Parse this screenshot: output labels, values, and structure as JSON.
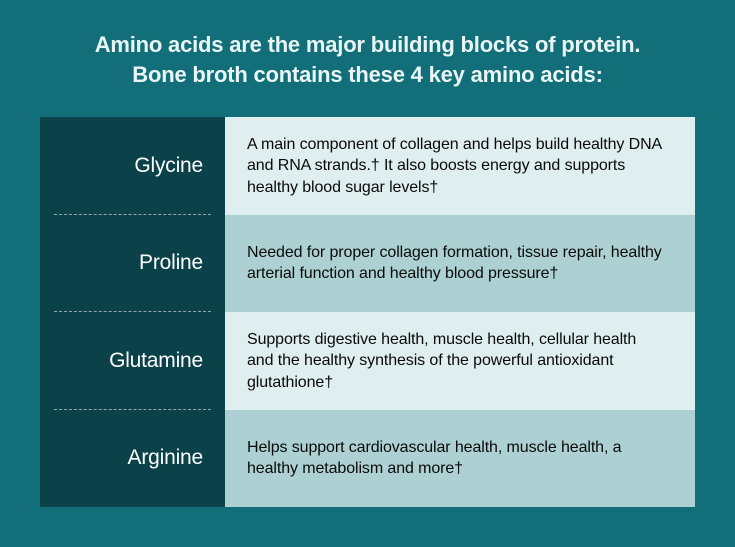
{
  "colors": {
    "bg": "#126f79",
    "heading": "#eaf5f5",
    "label_bg": "#0b4149",
    "label_text": "#ffffff",
    "divider": "rgba(255,255,255,0.55)",
    "desc_text": "#0a0a0a",
    "row_bg_light": "#dfeeee",
    "row_bg_dark": "#add1d3"
  },
  "heading_line1": "Amino acids are the major building blocks of protein.",
  "heading_line2": "Bone broth contains these 4 key amino acids:",
  "rows": [
    {
      "name": "Glycine",
      "desc": "A main component of collagen and helps build healthy DNA and RNA strands.† It also boosts energy and supports healthy blood sugar levels†",
      "bg": "#dfeeee"
    },
    {
      "name": "Proline",
      "desc": "Needed for proper collagen formation, tissue repair, healthy arterial function and healthy blood pressure†",
      "bg": "#add1d3"
    },
    {
      "name": "Glutamine",
      "desc": "Supports digestive health, muscle health, cellular health and the healthy synthesis of the powerful antioxidant glutathione†",
      "bg": "#dfeeee"
    },
    {
      "name": "Arginine",
      "desc": "Helps support cardiovascular health, muscle health, a healthy metabolism and more†",
      "bg": "#add1d3"
    }
  ],
  "typography": {
    "heading_fontsize": 22,
    "label_fontsize": 21,
    "desc_fontsize": 16
  }
}
